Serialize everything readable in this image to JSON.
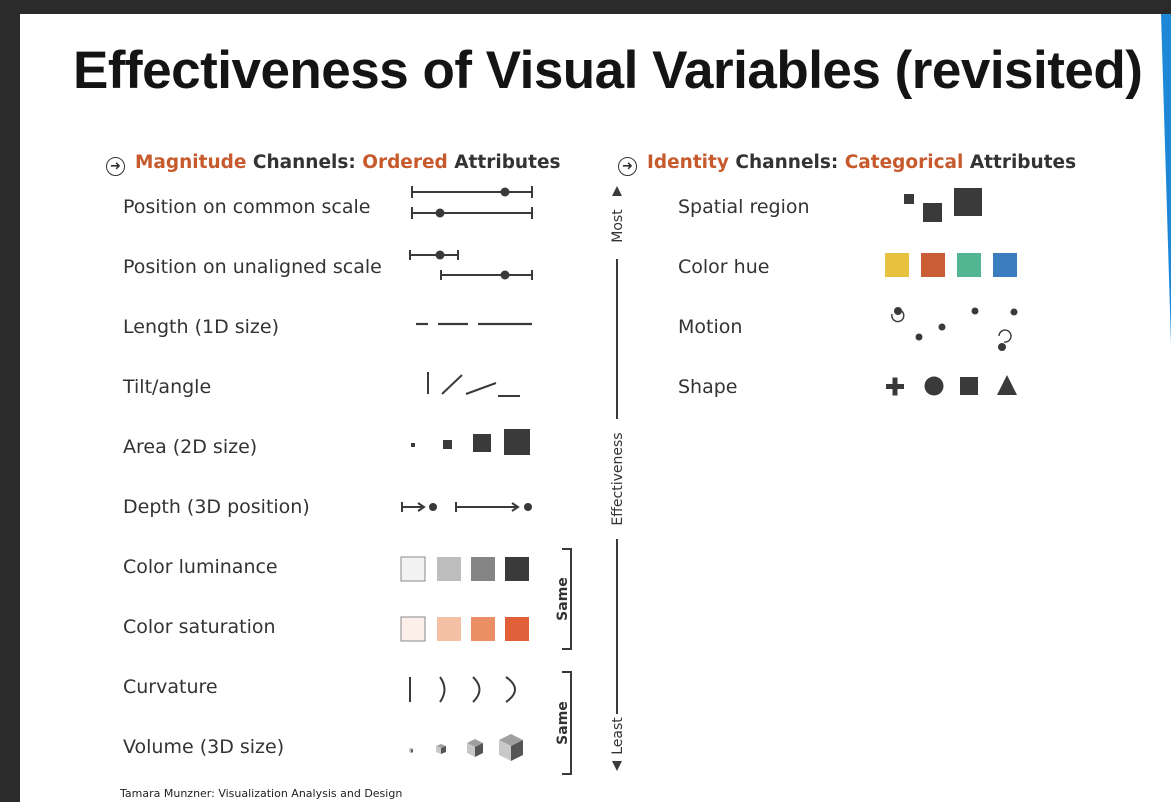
{
  "title": "Effectiveness of Visual Variables (revisited)",
  "magnitude": {
    "header": {
      "kind": "Magnitude",
      "channels": " Channels: ",
      "type": "Ordered",
      "attrs": " Attributes"
    },
    "rows": [
      "Position on common scale",
      "Position on unaligned scale",
      "Length (1D size)",
      "Tilt/angle",
      "Area (2D size)",
      "Depth (3D position)",
      "Color luminance",
      "Color saturation",
      "Curvature",
      "Volume (3D size)"
    ],
    "scale": {
      "most": "Most",
      "effectiveness": "Effectiveness",
      "least": "Least",
      "same": "Same"
    }
  },
  "identity": {
    "header": {
      "kind": "Identity",
      "channels": " Channels: ",
      "type": "Categorical",
      "attrs": " Attributes"
    },
    "rows": [
      "Spatial region",
      "Color hue",
      "Motion",
      "Shape"
    ]
  },
  "colors": {
    "accent": "#c75a2c",
    "mark": "#3a3a3a",
    "luminance": [
      "#f2f2f2",
      "#bdbdbd",
      "#858585",
      "#3a3a3a"
    ],
    "saturation": [
      "#fcefe9",
      "#f4c1a7",
      "#ea8f66",
      "#e0603a"
    ],
    "hue": [
      "#e8c23e",
      "#c95e34",
      "#52b692",
      "#3a7ec0"
    ],
    "slide_accent": "#1e88d8"
  },
  "footer": "Tamara Munzner: Visualization Analysis and Design"
}
